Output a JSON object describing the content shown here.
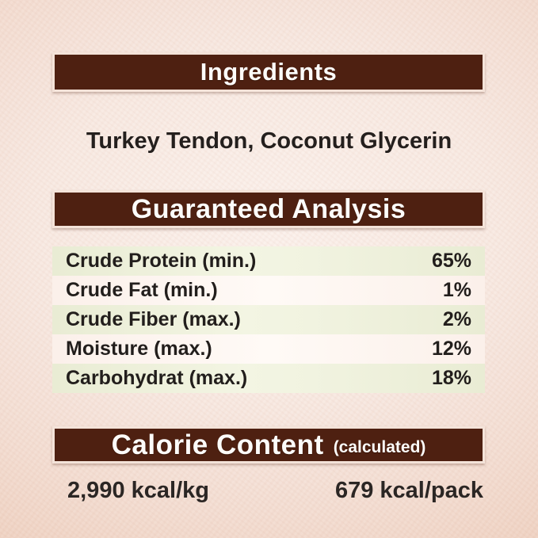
{
  "theme": {
    "background_center": "#fbf1ec",
    "background_edge": "#e9c6b2",
    "header_bar_color": "#4e2011",
    "header_text_color": "#fdfcfa",
    "body_text_color": "#221e1c",
    "row_highlight_color": "#eef0dc",
    "row_alternate_color": "#fdf6f2"
  },
  "ingredients": {
    "header": "Ingredients",
    "value": "Turkey Tendon, Coconut Glycerin"
  },
  "guaranteed_analysis": {
    "header": "Guaranteed Analysis",
    "rows": [
      {
        "label": "Crude Protein (min.)",
        "value": "65%"
      },
      {
        "label": "Crude Fat (min.)",
        "value": "1%"
      },
      {
        "label": "Crude Fiber (max.)",
        "value": "2%"
      },
      {
        "label": "Moisture (max.)",
        "value": "12%"
      },
      {
        "label": "Carbohydrat (max.)",
        "value": "18%"
      }
    ]
  },
  "calorie_content": {
    "header": "Calorie Content",
    "header_suffix": "(calculated)",
    "per_kg": "2,990 kcal/kg",
    "per_pack": "679 kcal/pack"
  }
}
